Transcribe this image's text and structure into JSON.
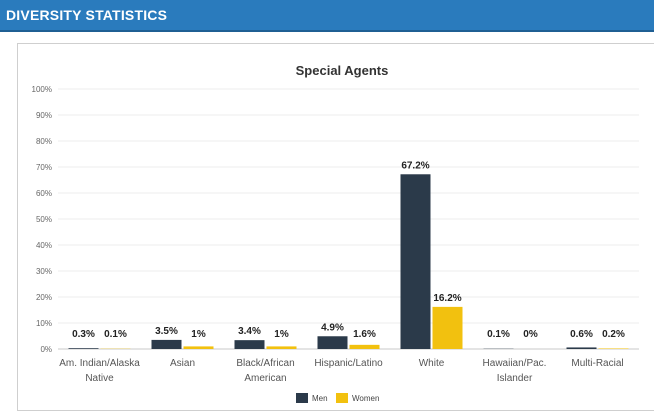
{
  "header": {
    "title": "DIVERSITY STATISTICS"
  },
  "chart_data": {
    "type": "bar",
    "title": "Special Agents",
    "xlabel": "",
    "ylabel": "",
    "ylim": [
      0,
      100
    ],
    "y_ticks": [
      "0%",
      "10%",
      "20%",
      "30%",
      "40%",
      "50%",
      "60%",
      "70%",
      "80%",
      "90%",
      "100%"
    ],
    "categories": [
      [
        "Am. Indian/Alaska",
        "Native"
      ],
      [
        "Asian"
      ],
      [
        "Black/African",
        "American"
      ],
      [
        "Hispanic/Latino"
      ],
      [
        "White"
      ],
      [
        "Hawaiian/Pac.",
        "Islander"
      ],
      [
        "Multi-Racial"
      ]
    ],
    "series": [
      {
        "name": "Men",
        "color": "#2b3a4a",
        "values": [
          0.3,
          3.5,
          3.4,
          4.9,
          67.2,
          0.1,
          0.6
        ],
        "labels": [
          "0.3%",
          "3.5%",
          "3.4%",
          "4.9%",
          "67.2%",
          "0.1%",
          "0.6%"
        ]
      },
      {
        "name": "Women",
        "color": "#f2c10f",
        "values": [
          0.1,
          1,
          1,
          1.6,
          16.2,
          0,
          0.2
        ],
        "labels": [
          "0.1%",
          "1%",
          "1%",
          "1.6%",
          "16.2%",
          "0%",
          "0.2%"
        ]
      }
    ],
    "grid": true,
    "legend": "bottom-center"
  }
}
